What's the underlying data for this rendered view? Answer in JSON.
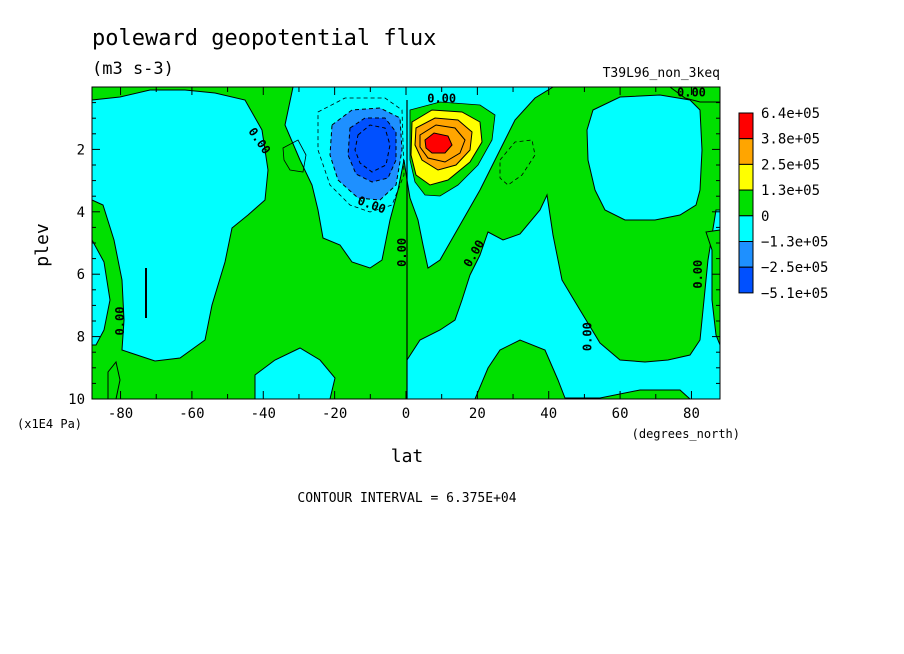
{
  "chart_data": {
    "type": "contour",
    "title": "poleward geopotential flux",
    "units_label": "(m3 s-3)",
    "run_label": "T39L96_non_3keq",
    "xlabel": "lat",
    "xunits": "(degrees_north)",
    "ylabel": "plev",
    "yunits": "(x1E4 Pa)",
    "xlim": [
      -88,
      88
    ],
    "ylim": [
      10,
      0
    ],
    "xticks": [
      -80,
      -60,
      -40,
      -20,
      0,
      20,
      40,
      60,
      80
    ],
    "yticks": [
      2,
      4,
      6,
      8,
      10
    ],
    "contour_interval": "CONTOUR INTERVAL = 6.375E+04",
    "contour_labels": [
      "0.00",
      "0.00",
      "0.00",
      "0.00",
      "0.00",
      "0.00",
      "0.00",
      "0.00",
      "0.00"
    ],
    "legend": {
      "labels": [
        "6.4e+05",
        "3.8e+05",
        "2.5e+05",
        "1.3e+05",
        "0",
        "−1.3e+05",
        "−2.5e+05",
        "−5.1e+05"
      ],
      "colors": [
        "#ff0000",
        "#ffa500",
        "#ffff00",
        "#00e000",
        "#00ffff",
        "#1e90ff",
        "#0050ff"
      ]
    },
    "features": [
      {
        "name": "negative core",
        "lat": -9,
        "plev": 2.0,
        "min_level": "-5.1e+05"
      },
      {
        "name": "positive core",
        "lat": 8,
        "plev": 2.0,
        "max_level": "6.4e+05"
      }
    ]
  }
}
